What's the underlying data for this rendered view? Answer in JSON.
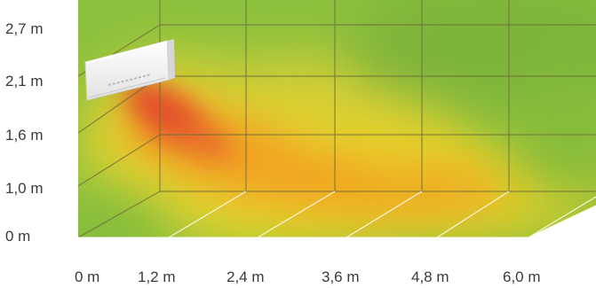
{
  "diagram": {
    "y_axis": {
      "labels": [
        "0 m",
        "1,0 m",
        "1,6 m",
        "2,1 m",
        "2,7 m"
      ]
    },
    "x_axis": {
      "labels": [
        "0 m",
        "1,2 m",
        "2,4 m",
        "3,6 m",
        "4,8 m",
        "6,0 m"
      ]
    },
    "colors": {
      "cool_green": "#7fb83a",
      "warm_yellow": "#e8d42a",
      "hot_orange": "#f0a21f",
      "hottest_red": "#e4522a",
      "grid_line": "#6b6b3a",
      "floor_line": "#ffffff",
      "unit_body": "#f4f4f4"
    },
    "icons": [
      "air-conditioner-unit-icon"
    ]
  }
}
